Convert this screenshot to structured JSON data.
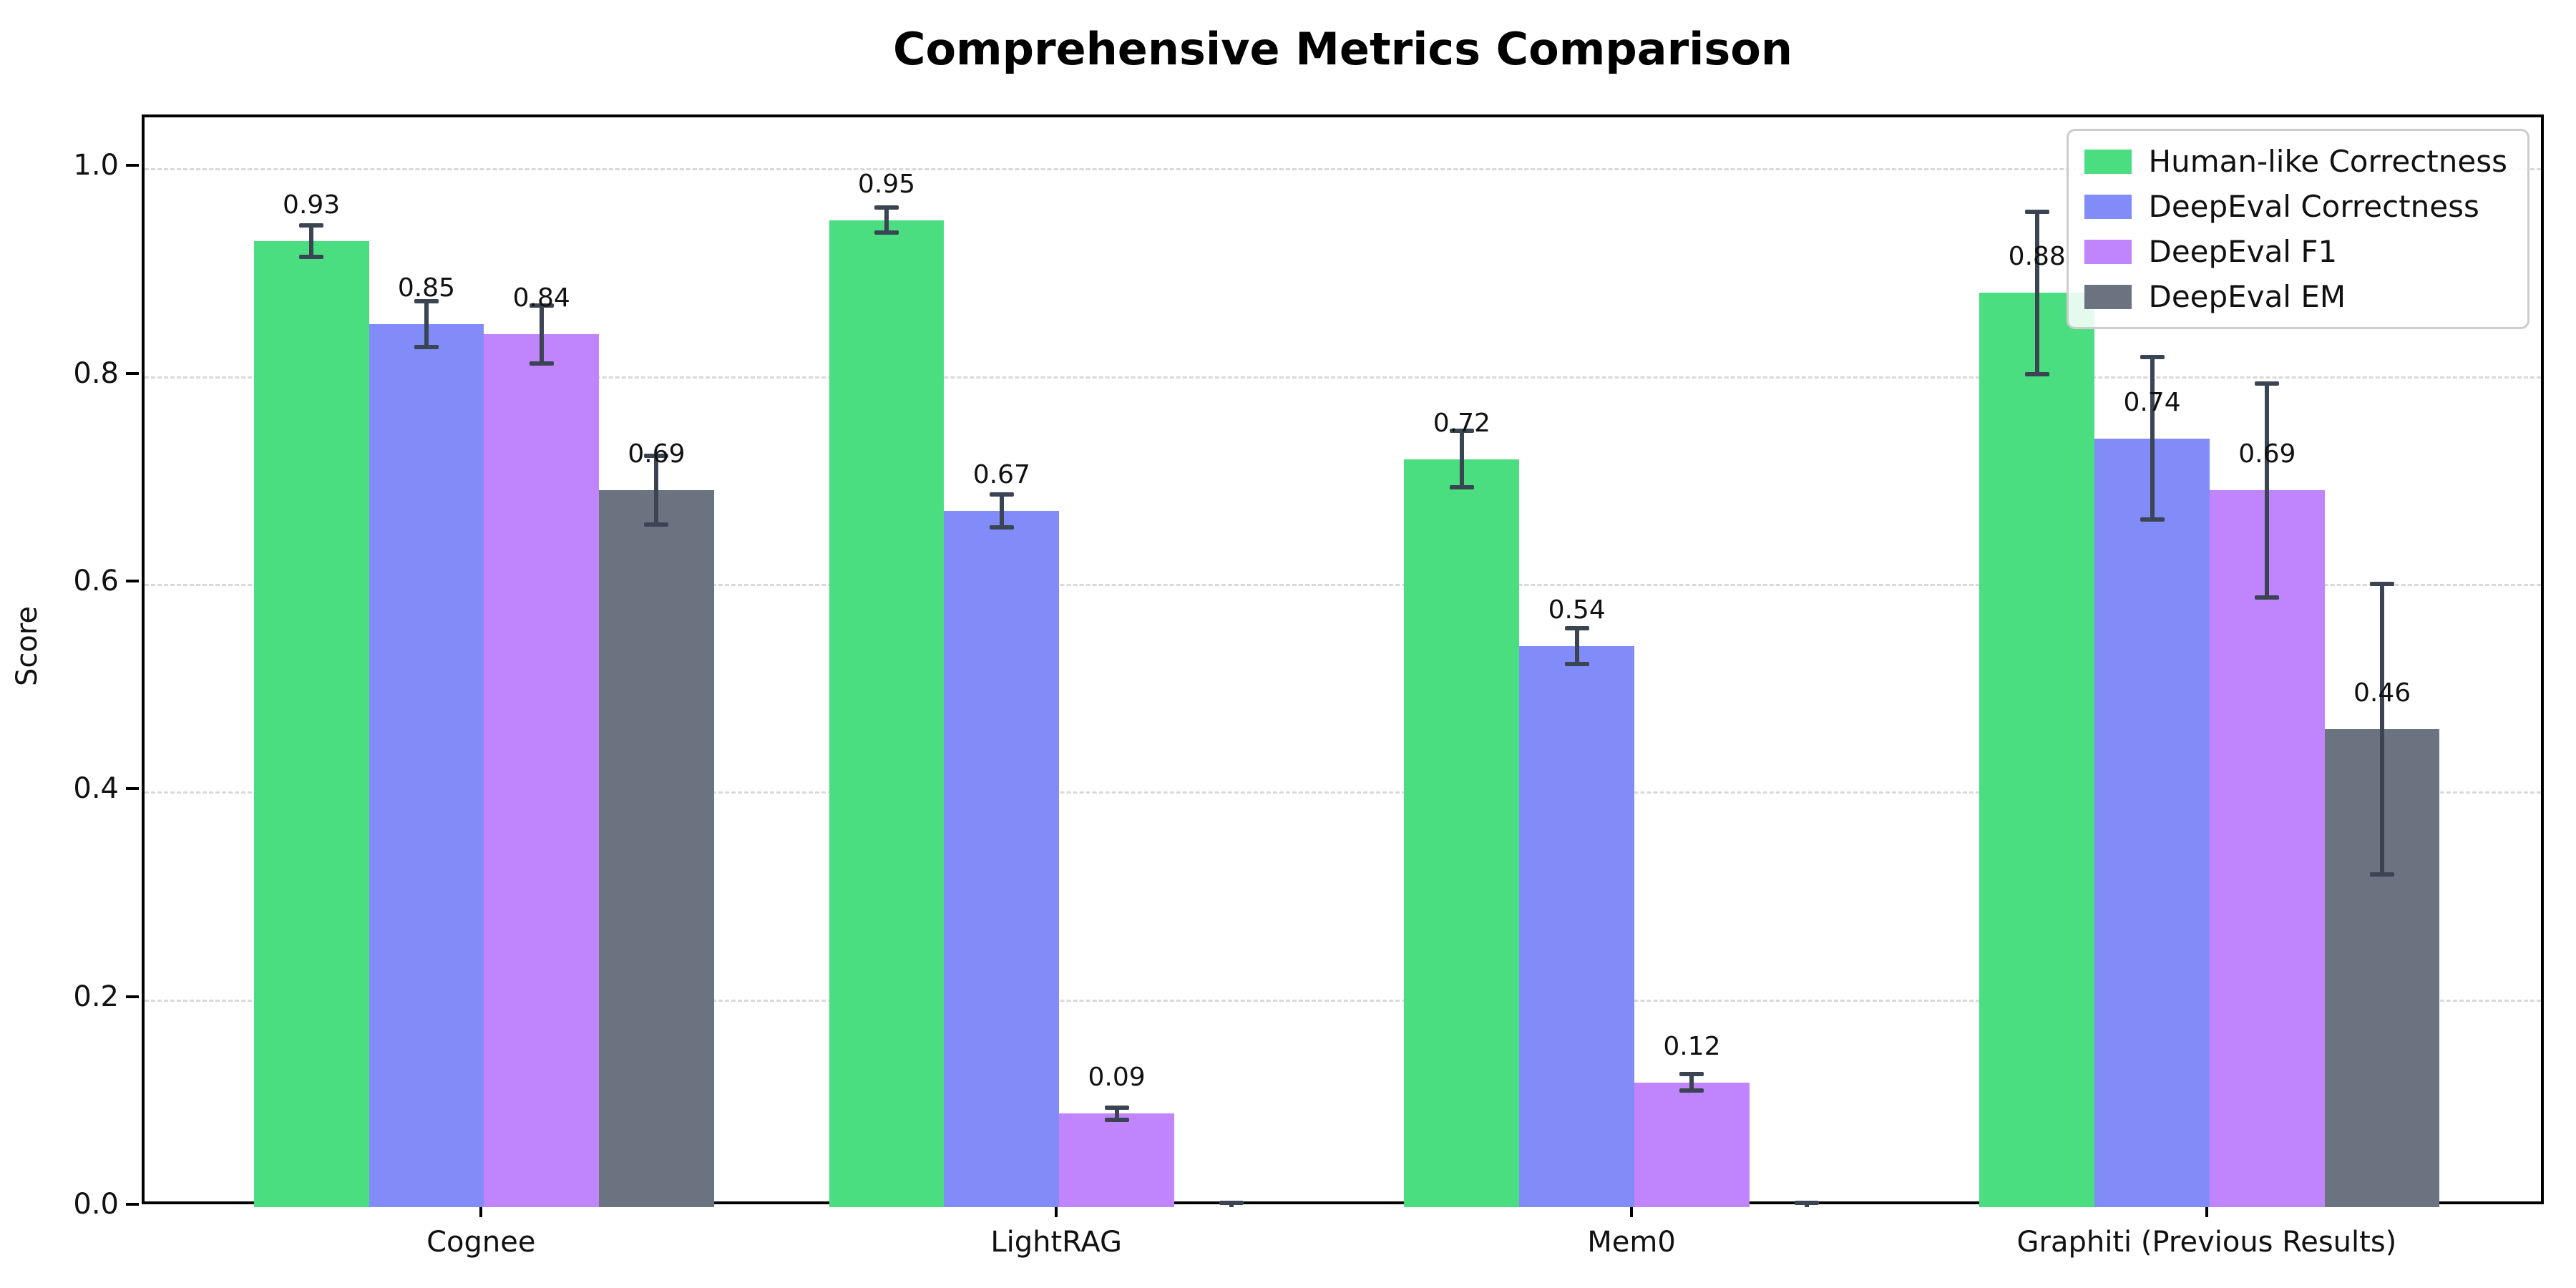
{
  "chart_data": {
    "type": "bar",
    "title": "Comprehensive Metrics Comparison",
    "ylabel": "Score",
    "xlabel": "",
    "ylim": [
      0,
      1.049
    ],
    "ytick_labels": [
      "0.0",
      "0.2",
      "0.4",
      "0.6",
      "0.8",
      "1.0"
    ],
    "ytick_values": [
      0.0,
      0.2,
      0.4,
      0.6,
      0.8,
      1.0
    ],
    "grid": "horizontal-dashed",
    "legend_position": "upper right",
    "error_bar_color": "#3b4453",
    "categories": [
      "Cognee",
      "LightRAG",
      "Mem0",
      "Graphiti (Previous Results)"
    ],
    "series": [
      {
        "name": "Human-like Correctness",
        "color": "#4ade80",
        "values": [
          0.93,
          0.95,
          0.72,
          0.88
        ],
        "errors": [
          0.015,
          0.012,
          0.027,
          0.078
        ],
        "labels": [
          "0.93",
          "0.95",
          "0.72",
          "0.88"
        ]
      },
      {
        "name": "DeepEval Correctness",
        "color": "#818cf8",
        "values": [
          0.85,
          0.67,
          0.54,
          0.74
        ],
        "errors": [
          0.022,
          0.016,
          0.017,
          0.078
        ],
        "labels": [
          "0.85",
          "0.67",
          "0.54",
          "0.74"
        ]
      },
      {
        "name": "DeepEval F1",
        "color": "#c084fc",
        "values": [
          0.84,
          0.09,
          0.12,
          0.69
        ],
        "errors": [
          0.028,
          0.006,
          0.008,
          0.103
        ],
        "labels": [
          "0.84",
          "0.09",
          "0.12",
          "0.69"
        ]
      },
      {
        "name": "DeepEval EM",
        "color": "#6b7280",
        "values": [
          0.69,
          0.0,
          0.0,
          0.46
        ],
        "errors": [
          0.033,
          0.004,
          0.004,
          0.14
        ],
        "labels": [
          "0.69",
          "",
          "",
          "0.46"
        ]
      }
    ]
  }
}
